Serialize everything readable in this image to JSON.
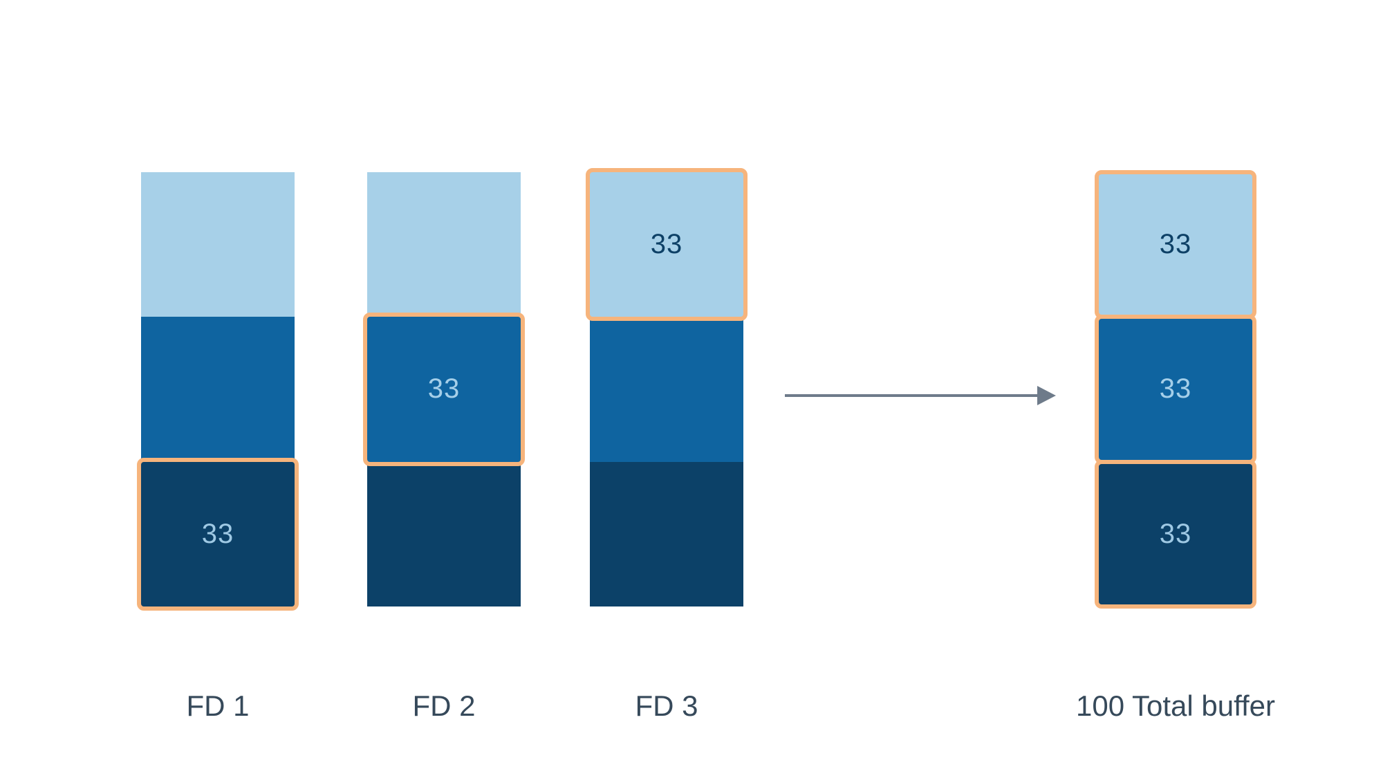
{
  "colors": {
    "background": "#FFFFFF",
    "light_blue": "#A7D0E8",
    "medium_blue": "#0F64A0",
    "dark_blue": "#0C4168",
    "highlight_orange": "#F6B47C",
    "arrow_gray": "#6E7B8A",
    "label_text": "#36495A",
    "value_text_on_light": "#0D4066",
    "value_text_on_dark": "#A5CFE9"
  },
  "columns": [
    {
      "label": "FD 1",
      "segments": [
        {
          "tone": "light",
          "highlighted": false
        },
        {
          "tone": "medium",
          "highlighted": false
        },
        {
          "tone": "dark",
          "highlighted": true,
          "value": "33"
        }
      ]
    },
    {
      "label": "FD 2",
      "segments": [
        {
          "tone": "light",
          "highlighted": false
        },
        {
          "tone": "medium",
          "highlighted": true,
          "value": "33"
        },
        {
          "tone": "dark",
          "highlighted": false
        }
      ]
    },
    {
      "label": "FD 3",
      "segments": [
        {
          "tone": "light",
          "highlighted": true,
          "value": "33"
        },
        {
          "tone": "medium",
          "highlighted": false
        },
        {
          "tone": "dark",
          "highlighted": false
        }
      ]
    }
  ],
  "result_column": {
    "label": "100 Total buffer",
    "segments": [
      {
        "tone": "light",
        "highlighted": true,
        "value": "33"
      },
      {
        "tone": "medium",
        "highlighted": true,
        "value": "33"
      },
      {
        "tone": "dark",
        "highlighted": true,
        "value": "33"
      }
    ]
  },
  "arrow": {
    "direction": "right"
  }
}
